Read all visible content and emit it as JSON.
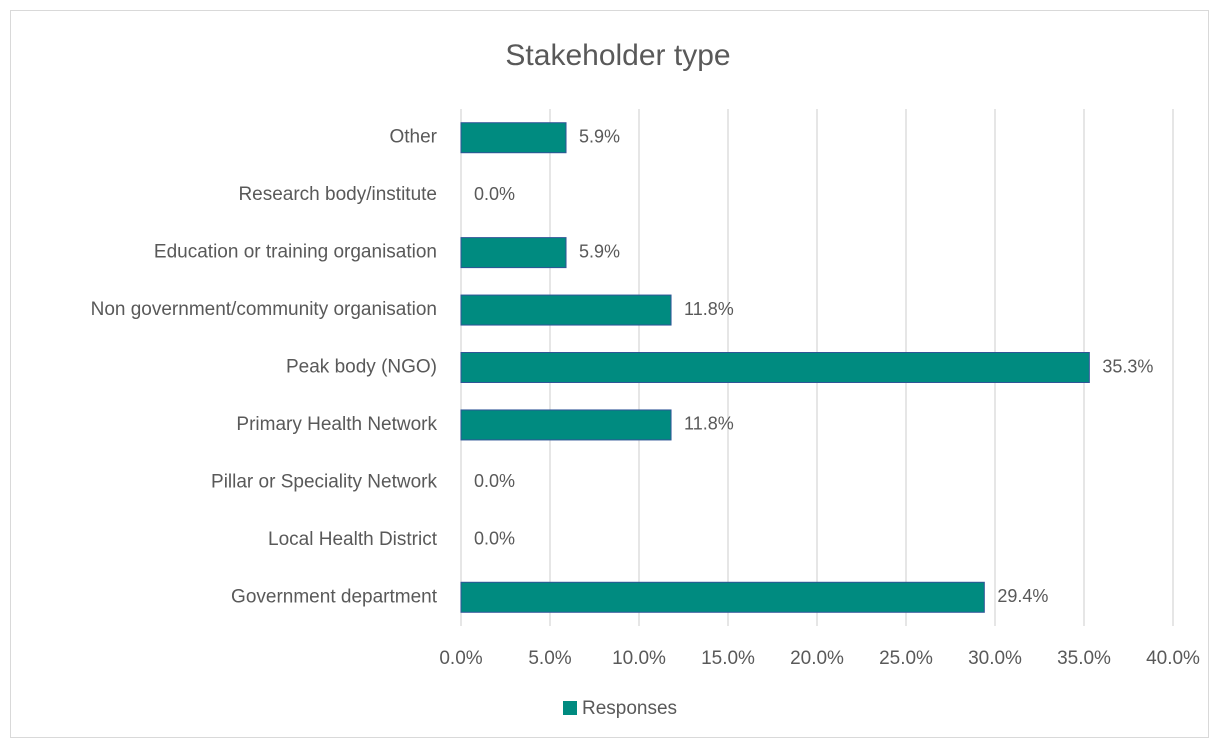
{
  "chart_data": {
    "type": "barh",
    "title": "Stakeholder type",
    "categories": [
      "Other",
      "Research body/institute",
      "Education or training organisation",
      "Non government/community organisation",
      "Peak body (NGO)",
      "Primary Health Network",
      "Pillar or Speciality Network",
      "Local Health District",
      "Government department"
    ],
    "series": [
      {
        "name": "Responses",
        "color": "#008b80",
        "values": [
          5.9,
          0.0,
          5.9,
          11.8,
          35.3,
          11.8,
          0.0,
          0.0,
          29.4
        ],
        "value_labels": [
          "5.9%",
          "0.0%",
          "5.9%",
          "11.8%",
          "35.3%",
          "11.8%",
          "0.0%",
          "0.0%",
          "29.4%"
        ]
      }
    ],
    "xlim": [
      0,
      40
    ],
    "xticks": [
      {
        "value": 0,
        "label": "0.0%"
      },
      {
        "value": 5,
        "label": "5.0%"
      },
      {
        "value": 10,
        "label": "10.0%"
      },
      {
        "value": 15,
        "label": "15.0%"
      },
      {
        "value": 20,
        "label": "20.0%"
      },
      {
        "value": 25,
        "label": "25.0%"
      },
      {
        "value": 30,
        "label": "30.0%"
      },
      {
        "value": 35,
        "label": "35.0%"
      },
      {
        "value": 40,
        "label": "40.0%"
      }
    ],
    "grid": true,
    "legend": "bottom"
  }
}
